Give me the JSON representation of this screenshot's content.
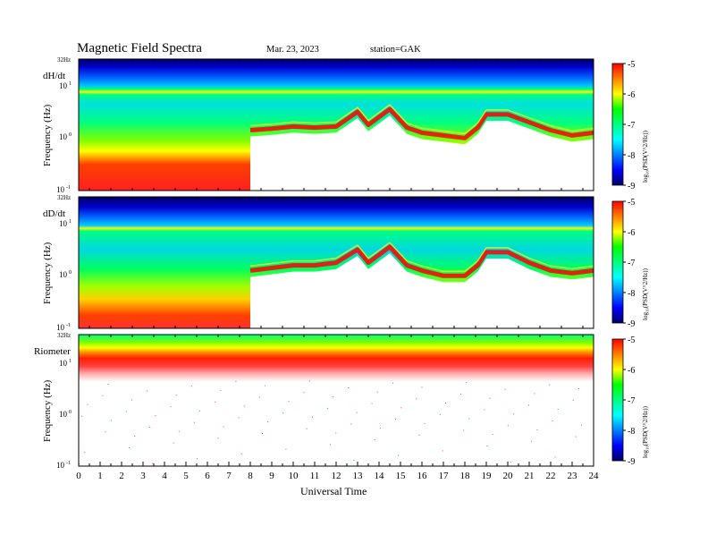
{
  "header": {
    "title": "Magnetic  Field  Spectra",
    "date": "Mar. 23, 2023",
    "station": "station=GAK"
  },
  "colors": {
    "background": "#ffffff",
    "axis": "#000000",
    "colormap": [
      "#000066",
      "#0000ff",
      "#0080ff",
      "#00ffff",
      "#00ff80",
      "#00ff00",
      "#ffff00",
      "#ff8000",
      "#ff0000",
      "#ffffff"
    ]
  },
  "chart_data": [
    {
      "type": "heatmap",
      "panel_label": "dH/dt",
      "ylabel": "Frequency  (Hz)",
      "top_label": "32Hz",
      "yticks": [
        "10",
        "10",
        "10"
      ],
      "yexps": [
        "1",
        "0",
        "-1"
      ],
      "x_range": [
        0,
        24
      ],
      "y_range_log10": [
        -1,
        1.505
      ],
      "log_scale_y": true,
      "colorbar": {
        "label": "log₁₀(PSD(V^2/Hz))",
        "ticks": [
          "-5",
          "-6",
          "-7",
          "-8",
          "-9"
        ],
        "range": [
          -9,
          -5
        ]
      },
      "ridge_log10_freq": [
        [
          0,
          null
        ],
        [
          7.7,
          null
        ],
        [
          8.0,
          0.15
        ],
        [
          9.0,
          0.18
        ],
        [
          10.0,
          0.22
        ],
        [
          11.0,
          0.2
        ],
        [
          12.0,
          0.22
        ],
        [
          13.0,
          0.5
        ],
        [
          13.5,
          0.25
        ],
        [
          14.5,
          0.55
        ],
        [
          15.3,
          0.2
        ],
        [
          16.0,
          0.1
        ],
        [
          17.0,
          0.05
        ],
        [
          18.0,
          0.0
        ],
        [
          18.6,
          0.2
        ],
        [
          19.0,
          0.45
        ],
        [
          20.0,
          0.45
        ],
        [
          21.0,
          0.3
        ],
        [
          22.0,
          0.15
        ],
        [
          23.0,
          0.05
        ],
        [
          24.0,
          0.1
        ]
      ]
    },
    {
      "type": "heatmap",
      "panel_label": "dD/dt",
      "ylabel": "Frequency  (Hz)",
      "top_label": "32Hz",
      "yticks": [
        "10",
        "10",
        "10"
      ],
      "yexps": [
        "1",
        "0",
        "-1"
      ],
      "x_range": [
        0,
        24
      ],
      "y_range_log10": [
        -1,
        1.505
      ],
      "log_scale_y": true,
      "colorbar": {
        "label": "log₁₀(PSD(V^2/Hz))",
        "ticks": [
          "-5",
          "-6",
          "-7",
          "-8",
          "-9"
        ],
        "range": [
          -9,
          -5
        ]
      },
      "ridge_log10_freq": [
        [
          0,
          null
        ],
        [
          7.7,
          null
        ],
        [
          8.0,
          0.1
        ],
        [
          9.0,
          0.15
        ],
        [
          10.0,
          0.2
        ],
        [
          11.0,
          0.2
        ],
        [
          12.0,
          0.25
        ],
        [
          13.0,
          0.5
        ],
        [
          13.5,
          0.25
        ],
        [
          14.5,
          0.55
        ],
        [
          15.3,
          0.2
        ],
        [
          16.0,
          0.1
        ],
        [
          17.0,
          0.0
        ],
        [
          18.0,
          0.0
        ],
        [
          18.6,
          0.2
        ],
        [
          19.0,
          0.45
        ],
        [
          20.0,
          0.45
        ],
        [
          21.0,
          0.25
        ],
        [
          22.0,
          0.1
        ],
        [
          23.0,
          0.05
        ],
        [
          24.0,
          0.1
        ]
      ]
    },
    {
      "type": "heatmap",
      "panel_label": "Riometer",
      "ylabel": "Frequency  (Hz)",
      "top_label": "32Hz",
      "yticks": [
        "10",
        "10",
        "10"
      ],
      "yexps": [
        "1",
        "0",
        "-1"
      ],
      "x_range": [
        0,
        24
      ],
      "y_range_log10": [
        -1,
        1.505
      ],
      "log_scale_y": true,
      "colorbar": {
        "label": "log₁₀(PSD(V^2/Hz))",
        "ticks": [
          "-5",
          "-6",
          "-7",
          "-8",
          "-9"
        ],
        "range": [
          -9,
          -5
        ]
      },
      "ridge_log10_freq": []
    }
  ],
  "xaxis": {
    "ticks": [
      "0",
      "1",
      "2",
      "3",
      "4",
      "5",
      "6",
      "7",
      "8",
      "9",
      "10",
      "11",
      "12",
      "13",
      "14",
      "15",
      "16",
      "17",
      "18",
      "19",
      "20",
      "21",
      "22",
      "23",
      "24"
    ],
    "label": "Universal  Time"
  }
}
